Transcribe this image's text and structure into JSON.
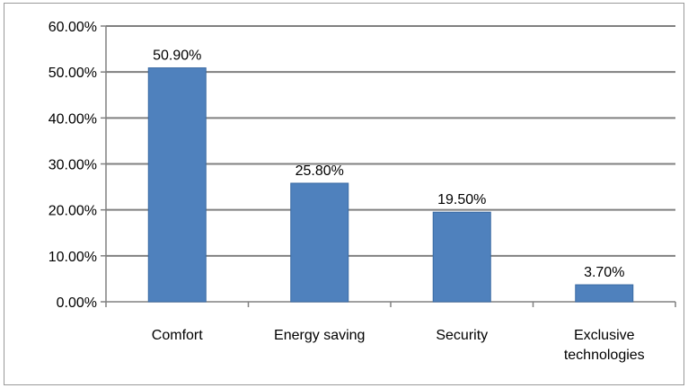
{
  "chart_data": {
    "type": "bar",
    "categories": [
      "Comfort",
      "Energy saving",
      "Security",
      "Exclusive technologies"
    ],
    "category_label_lines": [
      [
        "Comfort"
      ],
      [
        "Energy saving"
      ],
      [
        "Security"
      ],
      [
        "Exclusive",
        "technologies"
      ]
    ],
    "values": [
      50.9,
      25.8,
      19.5,
      3.7
    ],
    "data_labels": [
      "50.90%",
      "25.80%",
      "19.50%",
      "3.70%"
    ],
    "y_ticks": [
      0,
      10,
      20,
      30,
      40,
      50,
      60
    ],
    "y_tick_labels": [
      "0.00%",
      "10.00%",
      "20.00%",
      "30.00%",
      "40.00%",
      "50.00%",
      "60.00%"
    ],
    "ylim": [
      0,
      60
    ],
    "grid": true,
    "legend": false,
    "colors": {
      "bar": "#4f81bd",
      "bar_edge": "#3a6aa3",
      "gridline": "#808080",
      "axis": "#808080"
    }
  }
}
